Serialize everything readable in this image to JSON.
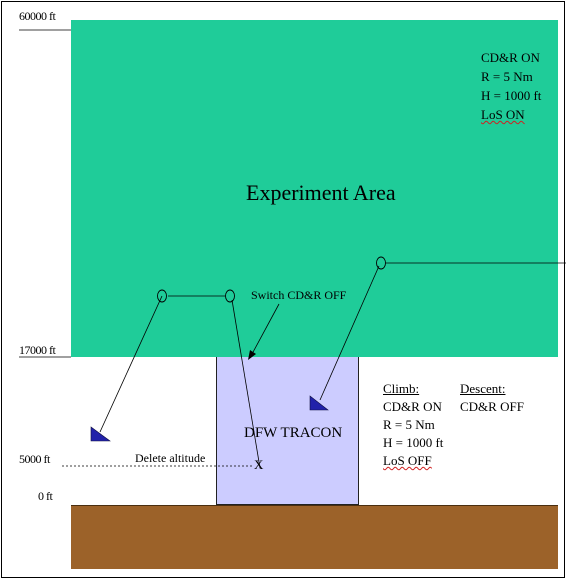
{
  "altitudes": {
    "top": "60000 ft",
    "mid": "17000 ft",
    "low": "5000 ft",
    "ground": "0 ft"
  },
  "experiment_area": {
    "title": "Experiment Area",
    "settings": [
      "CD&R ON",
      "R = 5 Nm",
      "H = 1000 ft",
      "LoS ON"
    ]
  },
  "tracon": {
    "label": "DFW TRACON"
  },
  "annotations": {
    "switch_cdr": "Switch CD&R OFF",
    "delete_altitude": "Delete altitude",
    "waypoint_x": "X"
  },
  "climb": {
    "heading": "Climb:",
    "items": [
      "CD&R ON",
      "R = 5 Nm",
      "H = 1000 ft",
      "LoS OFF"
    ]
  },
  "descent": {
    "heading": "Descent:",
    "items": [
      "CD&R OFF"
    ]
  },
  "colors": {
    "experiment_area": "#1fcc99",
    "tracon": "#ccccff",
    "ground": "#9c6229",
    "aircraft": "#2222aa"
  }
}
